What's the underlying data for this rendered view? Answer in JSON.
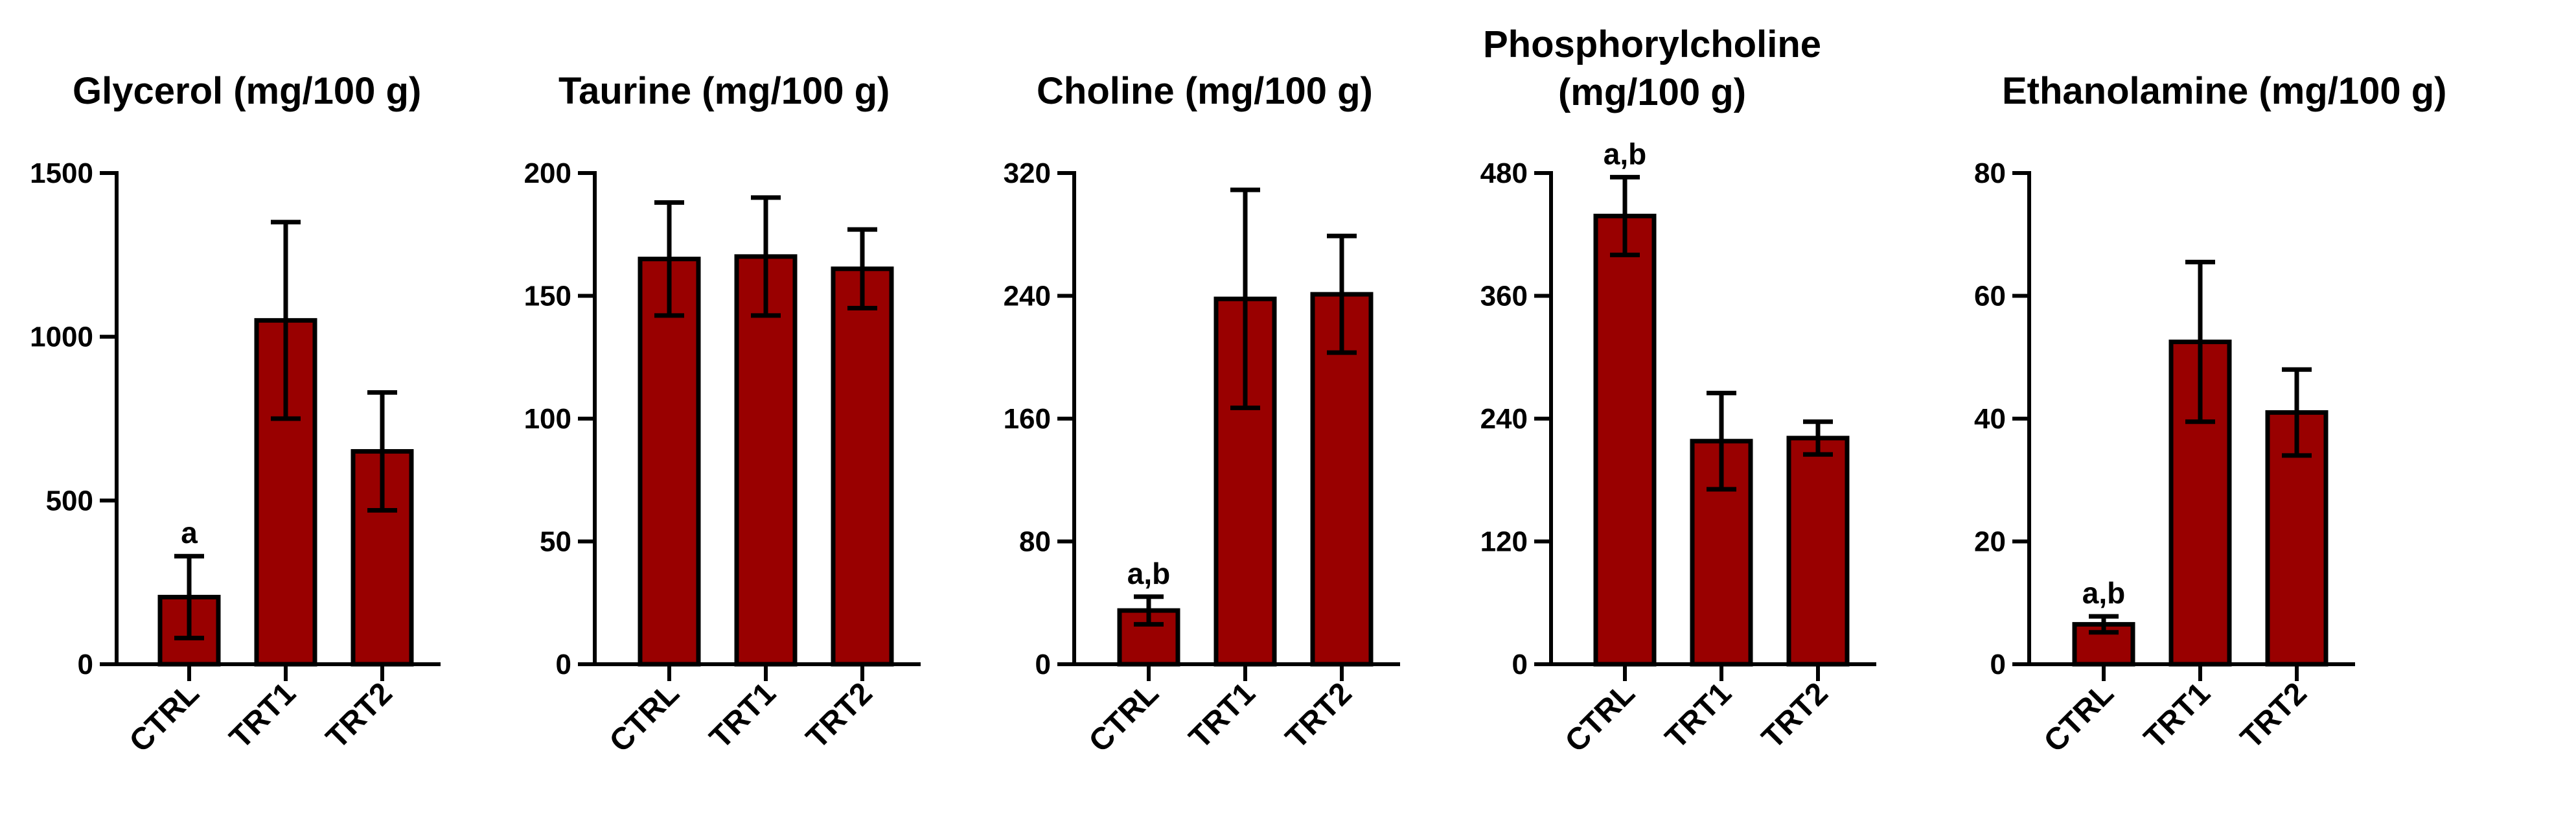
{
  "figure": {
    "bar_color": "#990000",
    "bar_outline_color": "#000000"
  },
  "chart_data": [
    {
      "type": "bar",
      "title_lines": [
        "Glycerol (mg/100 g)"
      ],
      "categories": [
        "CTRL",
        "TRT1",
        "TRT2"
      ],
      "values": [
        205,
        1050,
        650
      ],
      "errors": [
        125,
        300,
        180
      ],
      "ylim": [
        0,
        1500
      ],
      "yticks": [
        0,
        500,
        1000,
        1500
      ],
      "annotations": [
        "a",
        "",
        ""
      ],
      "xlabel": "",
      "ylabel": ""
    },
    {
      "type": "bar",
      "title_lines": [
        "Taurine (mg/100 g)"
      ],
      "categories": [
        "CTRL",
        "TRT1",
        "TRT2"
      ],
      "values": [
        165,
        166,
        161
      ],
      "errors": [
        23,
        24,
        16
      ],
      "ylim": [
        0,
        200
      ],
      "yticks": [
        0,
        50,
        100,
        150,
        200
      ],
      "annotations": [
        "",
        "",
        ""
      ],
      "xlabel": "",
      "ylabel": ""
    },
    {
      "type": "bar",
      "title_lines": [
        "Choline (mg/100 g)"
      ],
      "categories": [
        "CTRL",
        "TRT1",
        "TRT2"
      ],
      "values": [
        35,
        238,
        241
      ],
      "errors": [
        9,
        71,
        38
      ],
      "ylim": [
        0,
        320
      ],
      "yticks": [
        0,
        80,
        160,
        240,
        320
      ],
      "annotations": [
        "a,b",
        "",
        ""
      ],
      "xlabel": "",
      "ylabel": ""
    },
    {
      "type": "bar",
      "title_lines": [
        "Phosphorylcholine",
        "(mg/100 g)"
      ],
      "categories": [
        "CTRL",
        "TRT1",
        "TRT2"
      ],
      "values": [
        438,
        218,
        221
      ],
      "errors": [
        38,
        47,
        16
      ],
      "ylim": [
        0,
        480
      ],
      "yticks": [
        0,
        120,
        240,
        360,
        480
      ],
      "annotations": [
        "a,b",
        "",
        ""
      ],
      "xlabel": "",
      "ylabel": ""
    },
    {
      "type": "bar",
      "title_lines": [
        "Ethanolamine (mg/100 g)"
      ],
      "categories": [
        "CTRL",
        "TRT1",
        "TRT2"
      ],
      "values": [
        6.5,
        52.5,
        41
      ],
      "errors": [
        1.3,
        13,
        7
      ],
      "ylim": [
        0,
        80
      ],
      "yticks": [
        0,
        20,
        40,
        60,
        80
      ],
      "annotations": [
        "a,b",
        "",
        ""
      ],
      "xlabel": "",
      "ylabel": ""
    }
  ]
}
